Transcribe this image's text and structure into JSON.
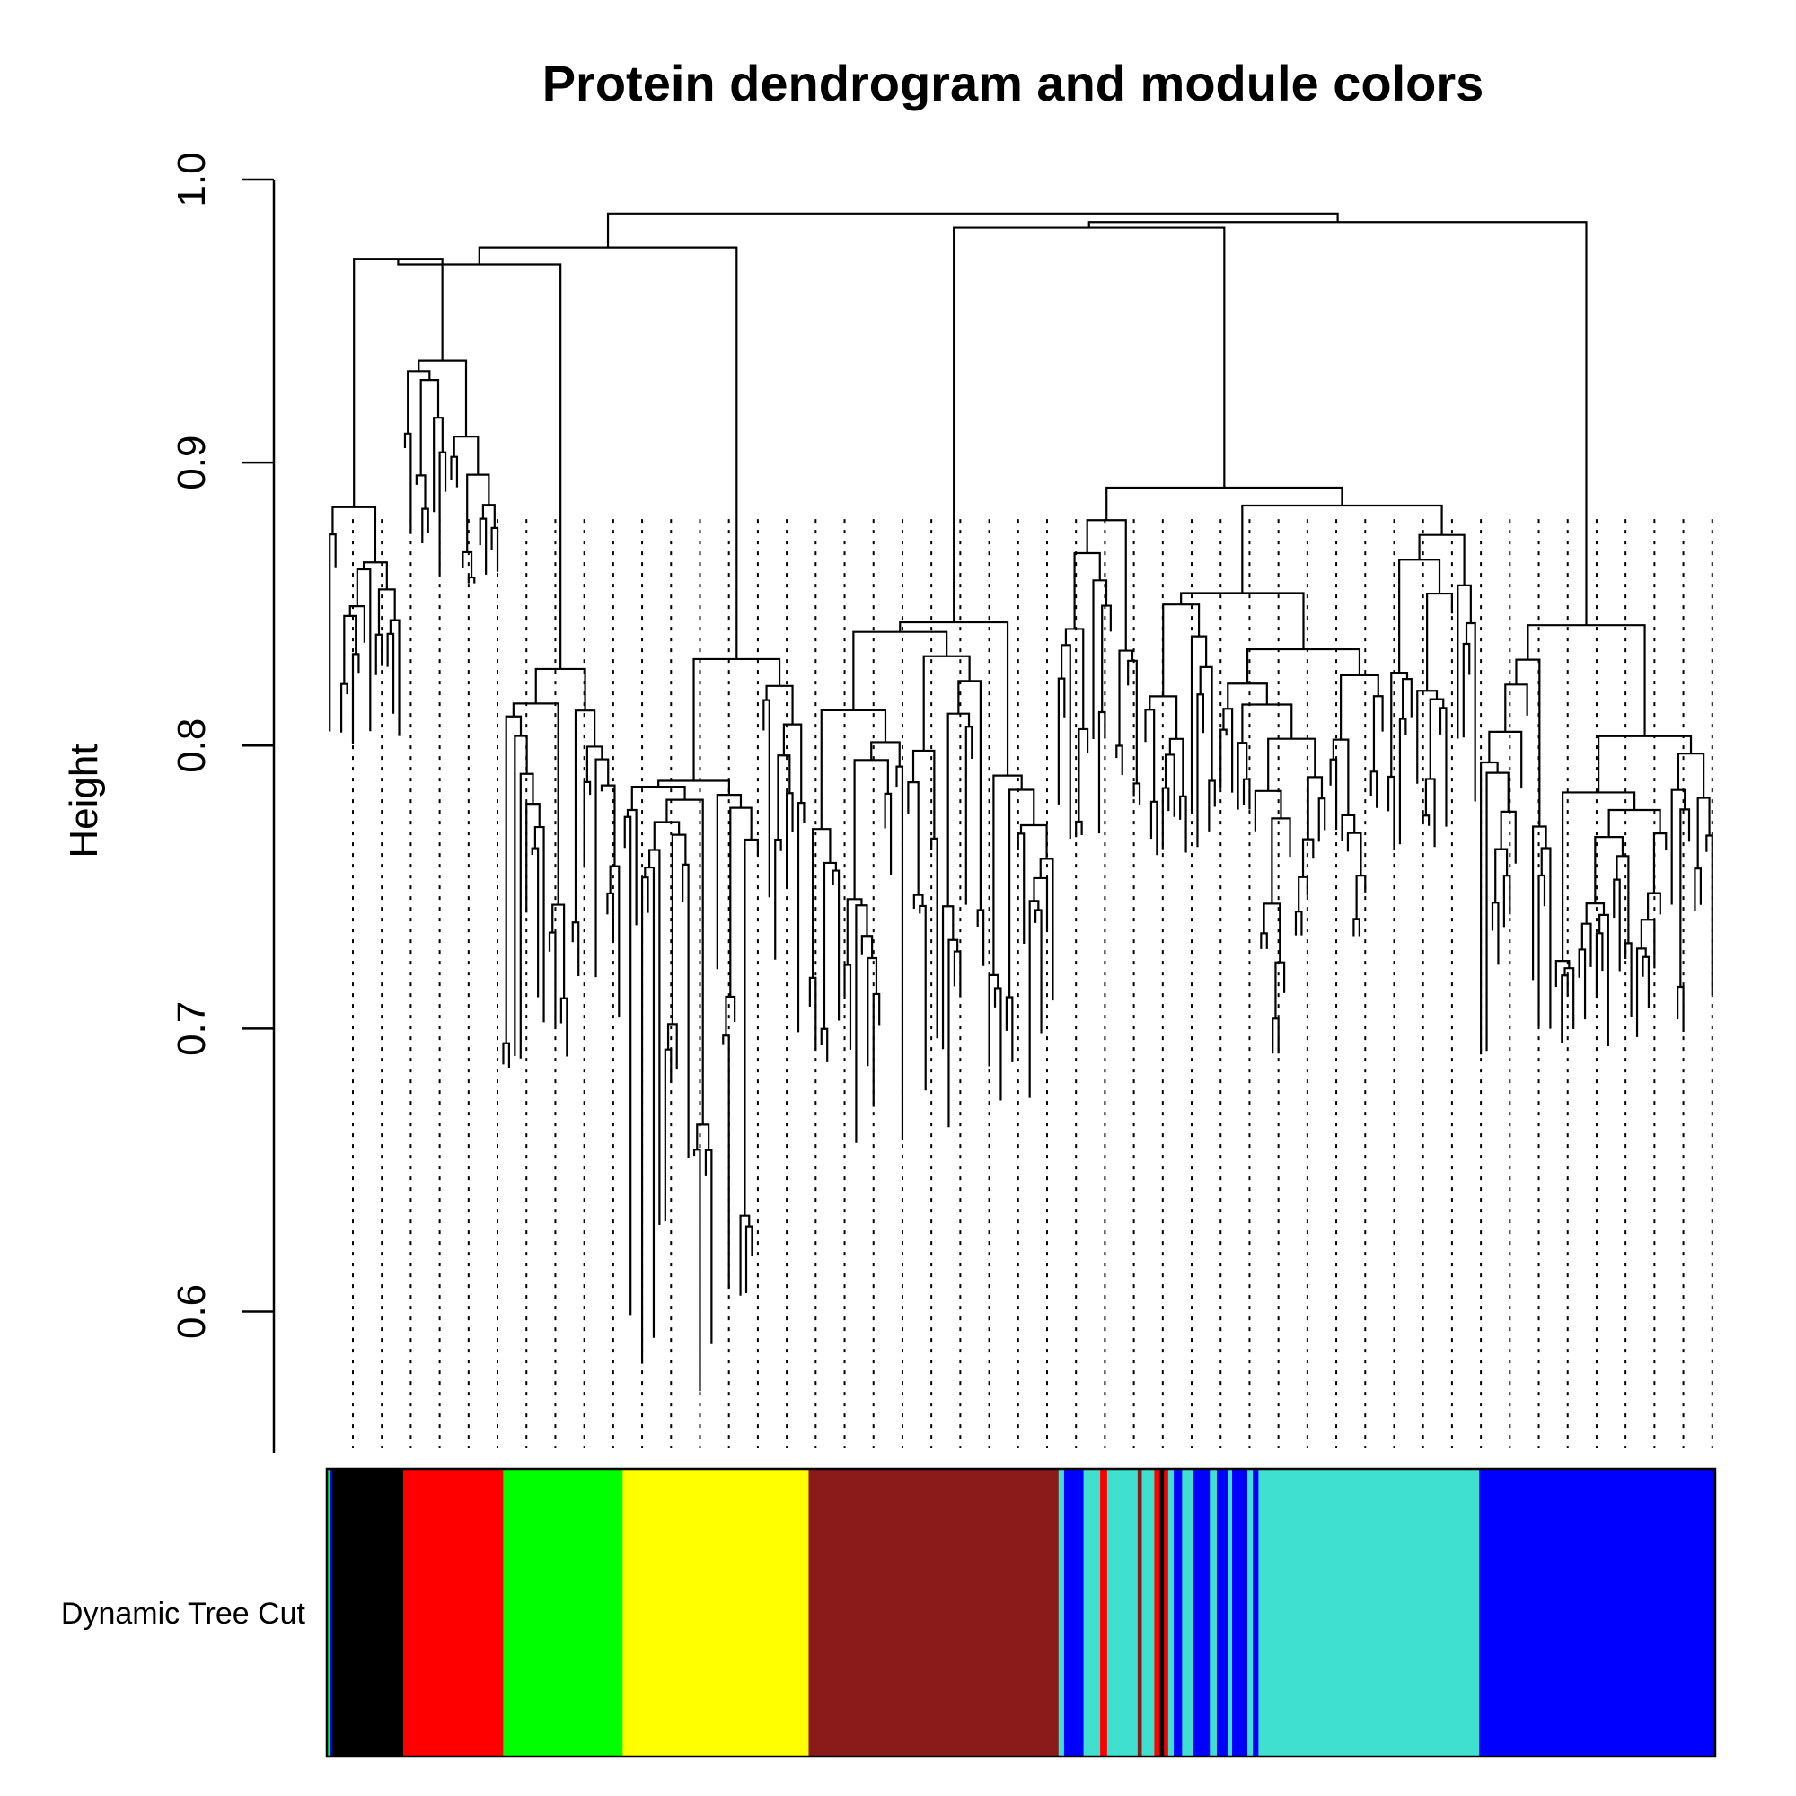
{
  "chart_data": {
    "type": "dendrogram",
    "title": "Protein dendrogram and module colors",
    "ylabel": "Height",
    "xlabel": "",
    "ylim": [
      0.55,
      1.0
    ],
    "yticks": [
      "0.6",
      "0.7",
      "0.8",
      "0.9",
      "1.0"
    ],
    "ytick_values": [
      0.6,
      0.7,
      0.8,
      0.9,
      1.0
    ],
    "color_row_label": "Dynamic Tree Cut",
    "n_leaves": 240,
    "leaf_min_height": 0.57,
    "root_height": 0.988,
    "clusters": [
      {
        "color": "#000000",
        "start_fraction": 0.0,
        "end_fraction": 0.055,
        "merge_height": 0.955,
        "min_leaf": 0.8
      },
      {
        "color": "#ff0000",
        "start_fraction": 0.055,
        "end_fraction": 0.127,
        "merge_height": 0.955,
        "min_leaf": 0.86
      },
      {
        "color": "#00ff00",
        "start_fraction": 0.127,
        "end_fraction": 0.213,
        "merge_height": 0.95,
        "min_leaf": 0.68
      },
      {
        "color": "#ffff00",
        "start_fraction": 0.213,
        "end_fraction": 0.347,
        "merge_height": 0.962,
        "min_leaf": 0.57
      },
      {
        "color": "#8b1a1a",
        "start_fraction": 0.347,
        "end_fraction": 0.527,
        "merge_height": 0.97,
        "min_leaf": 0.65
      },
      {
        "color": "#40e0d0",
        "start_fraction": 0.527,
        "end_fraction": 0.83,
        "merge_height": 0.978,
        "min_leaf": 0.76
      },
      {
        "color": "#0000ff",
        "start_fraction": 0.83,
        "end_fraction": 1.0,
        "merge_height": 0.94,
        "min_leaf": 0.69
      }
    ],
    "module_color_segments": [
      {
        "color": "#00ff00",
        "from": 0.0,
        "to": 0.002
      },
      {
        "color": "#0000ff",
        "from": 0.002,
        "to": 0.004
      },
      {
        "color": "#000000",
        "from": 0.004,
        "to": 0.055
      },
      {
        "color": "#ff0000",
        "from": 0.055,
        "to": 0.127
      },
      {
        "color": "#00ff00",
        "from": 0.127,
        "to": 0.213
      },
      {
        "color": "#ffff00",
        "from": 0.213,
        "to": 0.347
      },
      {
        "color": "#8b1a1a",
        "from": 0.347,
        "to": 0.527
      },
      {
        "color": "#40e0d0",
        "from": 0.527,
        "to": 0.531
      },
      {
        "color": "#0000ff",
        "from": 0.531,
        "to": 0.545
      },
      {
        "color": "#40e0d0",
        "from": 0.545,
        "to": 0.557
      },
      {
        "color": "#ff0000",
        "from": 0.557,
        "to": 0.562
      },
      {
        "color": "#40e0d0",
        "from": 0.562,
        "to": 0.584
      },
      {
        "color": "#8b1a1a",
        "from": 0.584,
        "to": 0.587
      },
      {
        "color": "#40e0d0",
        "from": 0.587,
        "to": 0.596
      },
      {
        "color": "#ff0000",
        "from": 0.596,
        "to": 0.6
      },
      {
        "color": "#000000",
        "from": 0.6,
        "to": 0.603
      },
      {
        "color": "#ff0000",
        "from": 0.603,
        "to": 0.606
      },
      {
        "color": "#40e0d0",
        "from": 0.606,
        "to": 0.61
      },
      {
        "color": "#0000ff",
        "from": 0.61,
        "to": 0.616
      },
      {
        "color": "#40e0d0",
        "from": 0.616,
        "to": 0.624
      },
      {
        "color": "#0000ff",
        "from": 0.624,
        "to": 0.636
      },
      {
        "color": "#40e0d0",
        "from": 0.636,
        "to": 0.641
      },
      {
        "color": "#0000ff",
        "from": 0.641,
        "to": 0.649
      },
      {
        "color": "#40e0d0",
        "from": 0.649,
        "to": 0.652
      },
      {
        "color": "#0000ff",
        "from": 0.652,
        "to": 0.663
      },
      {
        "color": "#40e0d0",
        "from": 0.663,
        "to": 0.667
      },
      {
        "color": "#0000ff",
        "from": 0.667,
        "to": 0.671
      },
      {
        "color": "#40e0d0",
        "from": 0.671,
        "to": 0.83
      },
      {
        "color": "#0000ff",
        "from": 0.83,
        "to": 1.0
      }
    ]
  }
}
